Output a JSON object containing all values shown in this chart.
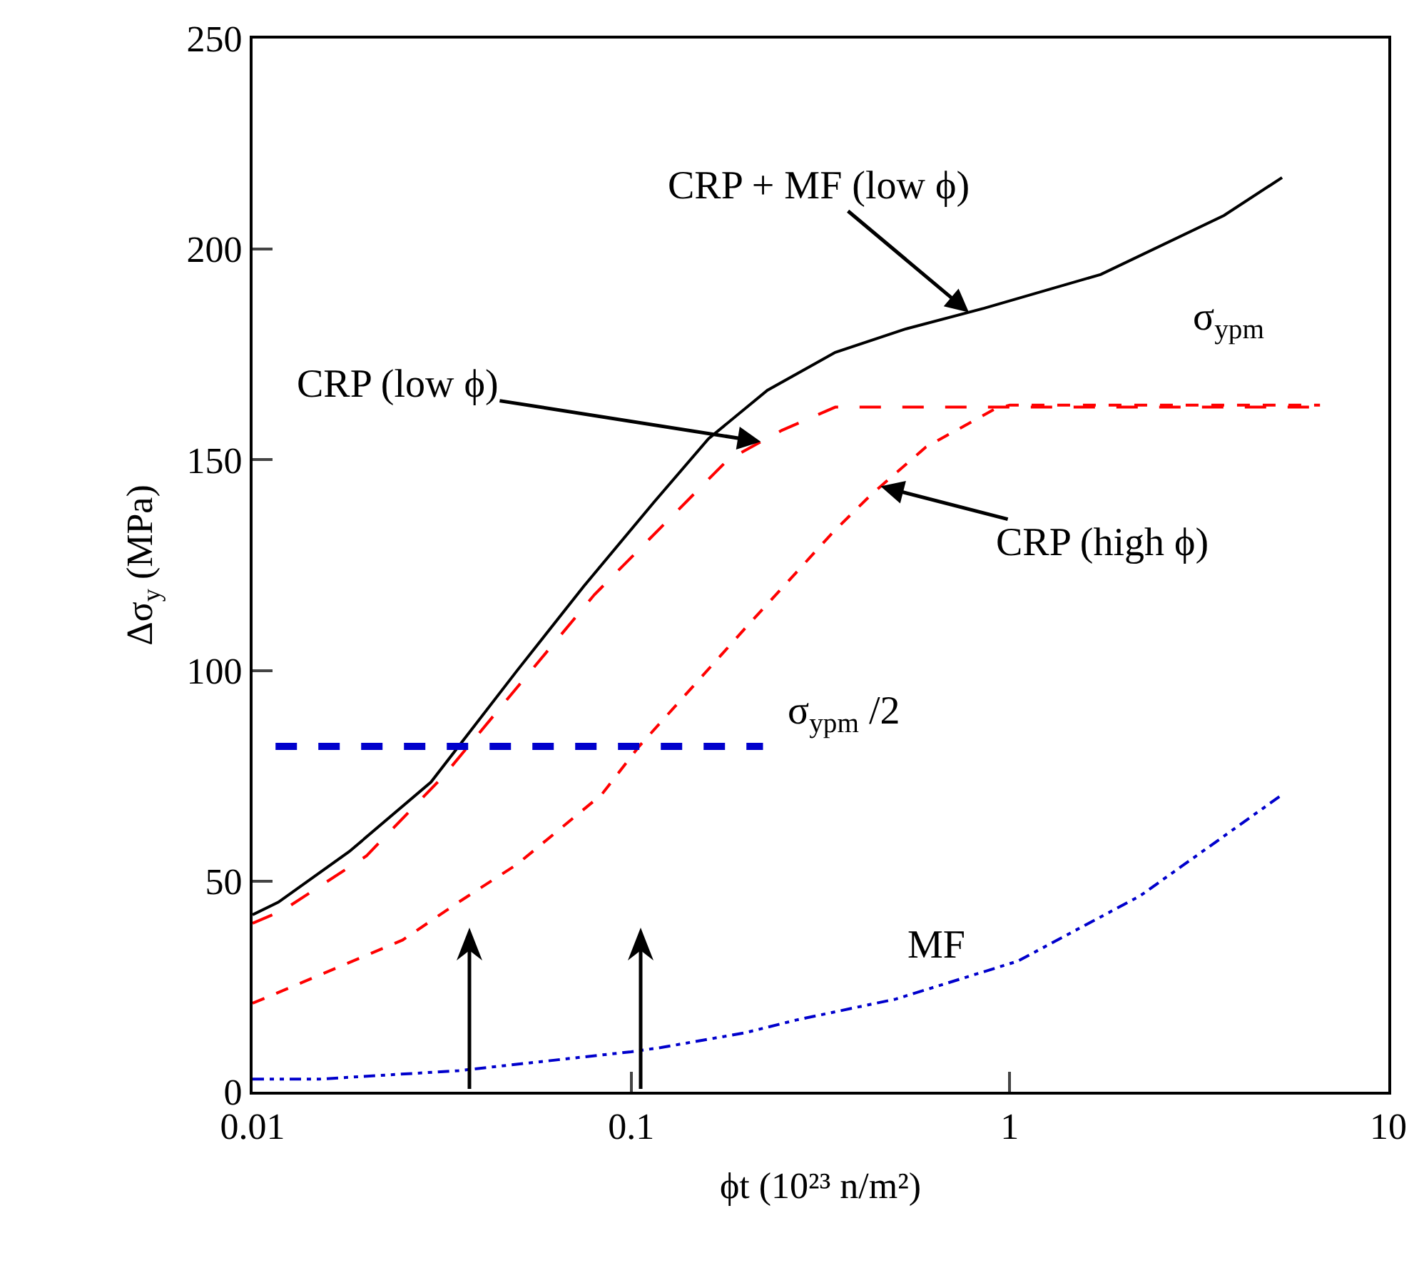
{
  "chart_data": {
    "type": "line",
    "xlabel": "ϕt (10²³ n/m²)",
    "ylabel": "Δσ$_{y}$ (MPa)",
    "log": "x",
    "xlim": [
      0.01,
      10
    ],
    "xticks": [
      0.01,
      0.1,
      1,
      10
    ],
    "ylim": [
      0,
      250
    ],
    "yticks": [
      0,
      50,
      100,
      150,
      200,
      250
    ],
    "grid": false,
    "marker": "none",
    "series": [
      {
        "color": "#000000",
        "line_style": "solid",
        "x": [
          0.01,
          0.0117,
          0.018,
          0.0296,
          0.05,
          0.075,
          0.115,
          0.16,
          0.229,
          0.346,
          0.528,
          0.857,
          1.74,
          3.68,
          5.24
        ],
        "values": [
          42,
          45,
          57,
          73.5,
          100,
          120,
          140,
          155,
          166.5,
          175.5,
          181,
          186,
          194,
          208,
          217
        ]
      },
      {
        "color": "#ff0000",
        "line_style": "longdash",
        "x": [
          0.01,
          0.012,
          0.02,
          0.032,
          0.05,
          0.08,
          0.12,
          0.18,
          0.25,
          0.346,
          6.6
        ],
        "values": [
          40,
          43,
          56,
          75,
          96,
          118,
          134,
          150,
          157,
          162.5,
          162.5
        ]
      },
      {
        "color": "#ff0000",
        "line_style": "dashed",
        "x": [
          0.01,
          0.0249,
          0.035,
          0.05,
          0.0835,
          0.105,
          0.2,
          0.343,
          0.43,
          0.6,
          0.91,
          1,
          6.6
        ],
        "values": [
          21,
          36,
          45,
          54,
          70.5,
          82,
          110,
          133,
          141.7,
          153,
          162,
          163,
          163
        ]
      },
      {
        "color": "#0000cc",
        "line_style": "dashdot",
        "x": [
          0.01,
          0.015,
          0.035,
          0.1,
          0.12,
          0.2,
          0.272,
          0.5,
          1.05,
          2.21,
          5.24
        ],
        "values": [
          3,
          3,
          5,
          9.5,
          10.5,
          14,
          17,
          22,
          31,
          46.5,
          70.5
        ]
      },
      {
        "color": "#0000cc",
        "line_style": "dashed",
        "x": [
          0.0115,
          0.223
        ],
        "values": [
          82,
          82
        ]
      }
    ],
    "annotations": [
      {
        "text": "CRP + MF (low ϕ)",
        "x": 0.78,
        "y": 185
      },
      {
        "text": "CRP (low ϕ)",
        "x": 0.22,
        "y": 154.3
      },
      {
        "text": "CRP (high ϕ)",
        "x": 0.456,
        "y": 143.7
      },
      "σ$_{ypm}$",
      "σ$_{ypm}$ /2",
      "MF"
    ]
  }
}
